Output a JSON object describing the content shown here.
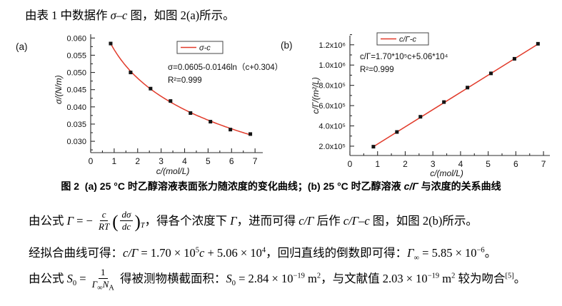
{
  "document": {
    "intro": {
      "pre": "由表 1 中数据作 ",
      "math": "σ–c",
      "post": " 图，如图 2(a)所示。"
    },
    "caption": {
      "fig": "图 2",
      "gap": "  ",
      "t1": "(a) 25 °C 时乙醇溶液表面张力随浓度的变化曲线；(b) 25 °C 时乙醇溶液 ",
      "math": "c/Γ",
      "t2": " 与浓度的关系曲线"
    },
    "para_gamma": {
      "t1": "由公式 ",
      "g1": "Γ",
      "eq": " = − ",
      "f1_num": "c",
      "f1_den": "RT",
      "paren_open": "(",
      "f2_num": "dσ",
      "f2_den": "dc",
      "paren_close": ")",
      "sub_T": "T",
      "t2": "，得各个浓度下 ",
      "g2": "Γ",
      "t3": "，进而可得 ",
      "m1": "c/Γ",
      "t4": " 后作 ",
      "m2": "c/Γ–c",
      "t5": " 图，如图 2(b)所示。"
    },
    "para_fit": {
      "t1": "经拟合曲线可得：",
      "m1": "c/Γ",
      "t2": " = 1.70 × 10",
      "s1": "5",
      "m2": "c",
      "t3": " + 5.06 × 10",
      "s2": "4",
      "t4": "，回归直线的倒数即可得：",
      "m3": "Γ",
      "sub_inf": "∞",
      "t5": " = 5.85 × 10",
      "s3": "−6",
      "t6": "。"
    },
    "para_s0": {
      "t1": "由公式 ",
      "m1": "S",
      "sub1": "0",
      "eq": " = ",
      "f_num": "1",
      "f_den_g": "Γ",
      "f_den_gs": "∞",
      "f_den_n": "N",
      "f_den_ns": "A",
      "t2": " 得被测物横截面积：",
      "m2": "S",
      "sub2": "0",
      "t3": " = 2.84 × 10",
      "s1": "−19",
      "t4": " m",
      "s2": "2",
      "t5": "，与文献值 2.03 × 10",
      "s3": "−19",
      "t6": " m",
      "s4": "2",
      "t7": " 较为吻合",
      "ref": "[5]",
      "t8": "。"
    }
  },
  "chart_data": [
    {
      "type": "scatter",
      "panel_label": "(a)",
      "xlabel": "c/(mol/L)",
      "ylabel": "σ/(N/m)",
      "legend": {
        "label": "σ-c",
        "position": "top-center"
      },
      "annotation": [
        "σ=0.0605-0.0146ln（c+0.304）",
        "R²=0.999"
      ],
      "x": [
        0.85,
        1.7,
        2.55,
        3.4,
        4.25,
        5.1,
        5.95,
        6.8
      ],
      "y": [
        0.0584,
        0.05,
        0.0453,
        0.0417,
        0.0382,
        0.0357,
        0.0334,
        0.0321
      ],
      "fit": {
        "kind": "log",
        "expression": "σ = 0.0605 − 0.0146·ln(c+0.304)",
        "a": 0.0605,
        "b": 0.0146,
        "c0": 0.304,
        "r2": 0.999
      },
      "xlim": [
        0,
        7.33
      ],
      "ylim": [
        0.0267,
        0.0611
      ],
      "xticks": [
        0,
        1,
        2,
        3,
        4,
        5,
        6,
        7
      ],
      "x_minor_step": 0.5,
      "yticks": [
        0.03,
        0.035,
        0.04,
        0.045,
        0.05,
        0.055,
        0.06
      ],
      "ytick_labels": [
        "0.030",
        "0.035",
        "0.040",
        "0.045",
        "0.050",
        "0.055",
        "0.060"
      ],
      "y_minor_step": 0.0025,
      "grid": false,
      "line_color": "#e13a2a",
      "marker_color": "#141414",
      "marker": "square"
    },
    {
      "type": "scatter",
      "panel_label": "(b)",
      "xlabel": "c/(mol/L)",
      "ylabel": "c/Γ/(m²/L)",
      "legend": {
        "label": "c/Γ-c",
        "position": "top-center"
      },
      "annotation": [
        "c/Γ=1.70*10⁵c+5.06*10⁴",
        "R²=0.999"
      ],
      "x": [
        0.85,
        1.7,
        2.55,
        3.4,
        4.25,
        5.1,
        5.95,
        6.8
      ],
      "y": [
        195000,
        340000,
        490000,
        635000,
        778000,
        918000,
        1062000,
        1210000
      ],
      "fit": {
        "kind": "linear",
        "expression": "c/Γ = 1.70×10⁵·c + 5.06×10⁴",
        "slope": 170000,
        "intercept": 50600,
        "r2": 0.999
      },
      "xlim": [
        0,
        7.23
      ],
      "ylim": [
        108000,
        1290000
      ],
      "xticks": [
        0,
        1,
        2,
        3,
        4,
        5,
        6,
        7
      ],
      "x_minor_step": 0.5,
      "yticks": [
        200000,
        400000,
        600000,
        800000,
        1000000,
        1200000
      ],
      "ytick_labels": [
        "2.0x10⁵",
        "4.0x10⁵",
        "6.0x10⁵",
        "8.0x10⁵",
        "1.0x10⁶",
        "1.2x10⁶"
      ],
      "y_minor_step": 100000,
      "grid": false,
      "line_color": "#e13a2a",
      "marker_color": "#141414",
      "marker": "square"
    }
  ]
}
